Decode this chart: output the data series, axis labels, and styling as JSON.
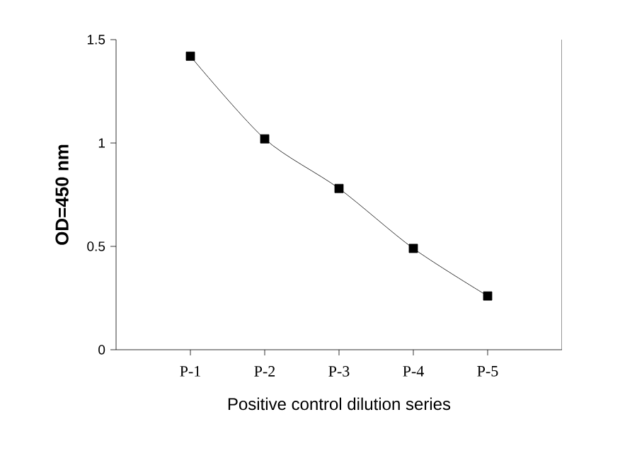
{
  "chart_data": {
    "type": "line",
    "xlabel": "Positive control dilution series",
    "ylabel": "OD=450 nm",
    "categories": [
      "P-1",
      "P-2",
      "P-3",
      "P-4",
      "P-5"
    ],
    "series": [
      {
        "color": "#000000",
        "values": [
          1.42,
          1.02,
          0.78,
          0.49,
          0.26
        ]
      }
    ],
    "ylim": [
      0,
      1.5
    ],
    "yticks": [
      0,
      0.5,
      1,
      1.5
    ],
    "marker": "square",
    "line_style": "solid"
  }
}
